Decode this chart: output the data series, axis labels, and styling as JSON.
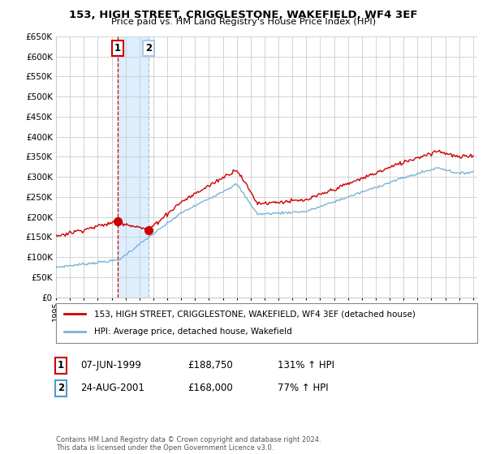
{
  "title": "153, HIGH STREET, CRIGGLESTONE, WAKEFIELD, WF4 3EF",
  "subtitle": "Price paid vs. HM Land Registry's House Price Index (HPI)",
  "legend_line1": "153, HIGH STREET, CRIGGLESTONE, WAKEFIELD, WF4 3EF (detached house)",
  "legend_line2": "HPI: Average price, detached house, Wakefield",
  "sale1_date": "07-JUN-1999",
  "sale1_price": "£188,750",
  "sale1_hpi": "131% ↑ HPI",
  "sale1_year": 1999.44,
  "sale1_value": 188750,
  "sale2_date": "24-AUG-2001",
  "sale2_price": "£168,000",
  "sale2_hpi": "77% ↑ HPI",
  "sale2_year": 2001.64,
  "sale2_value": 168000,
  "footer": "Contains HM Land Registry data © Crown copyright and database right 2024.\nThis data is licensed under the Open Government Licence v3.0.",
  "hpi_color": "#7ab4d8",
  "price_color": "#cc0000",
  "vline1_color": "#cc0000",
  "vline2_color": "#a8c8e8",
  "shade_color": "#ddeeff",
  "ylim_min": 0,
  "ylim_max": 650000,
  "background_color": "#ffffff",
  "grid_color": "#cccccc"
}
